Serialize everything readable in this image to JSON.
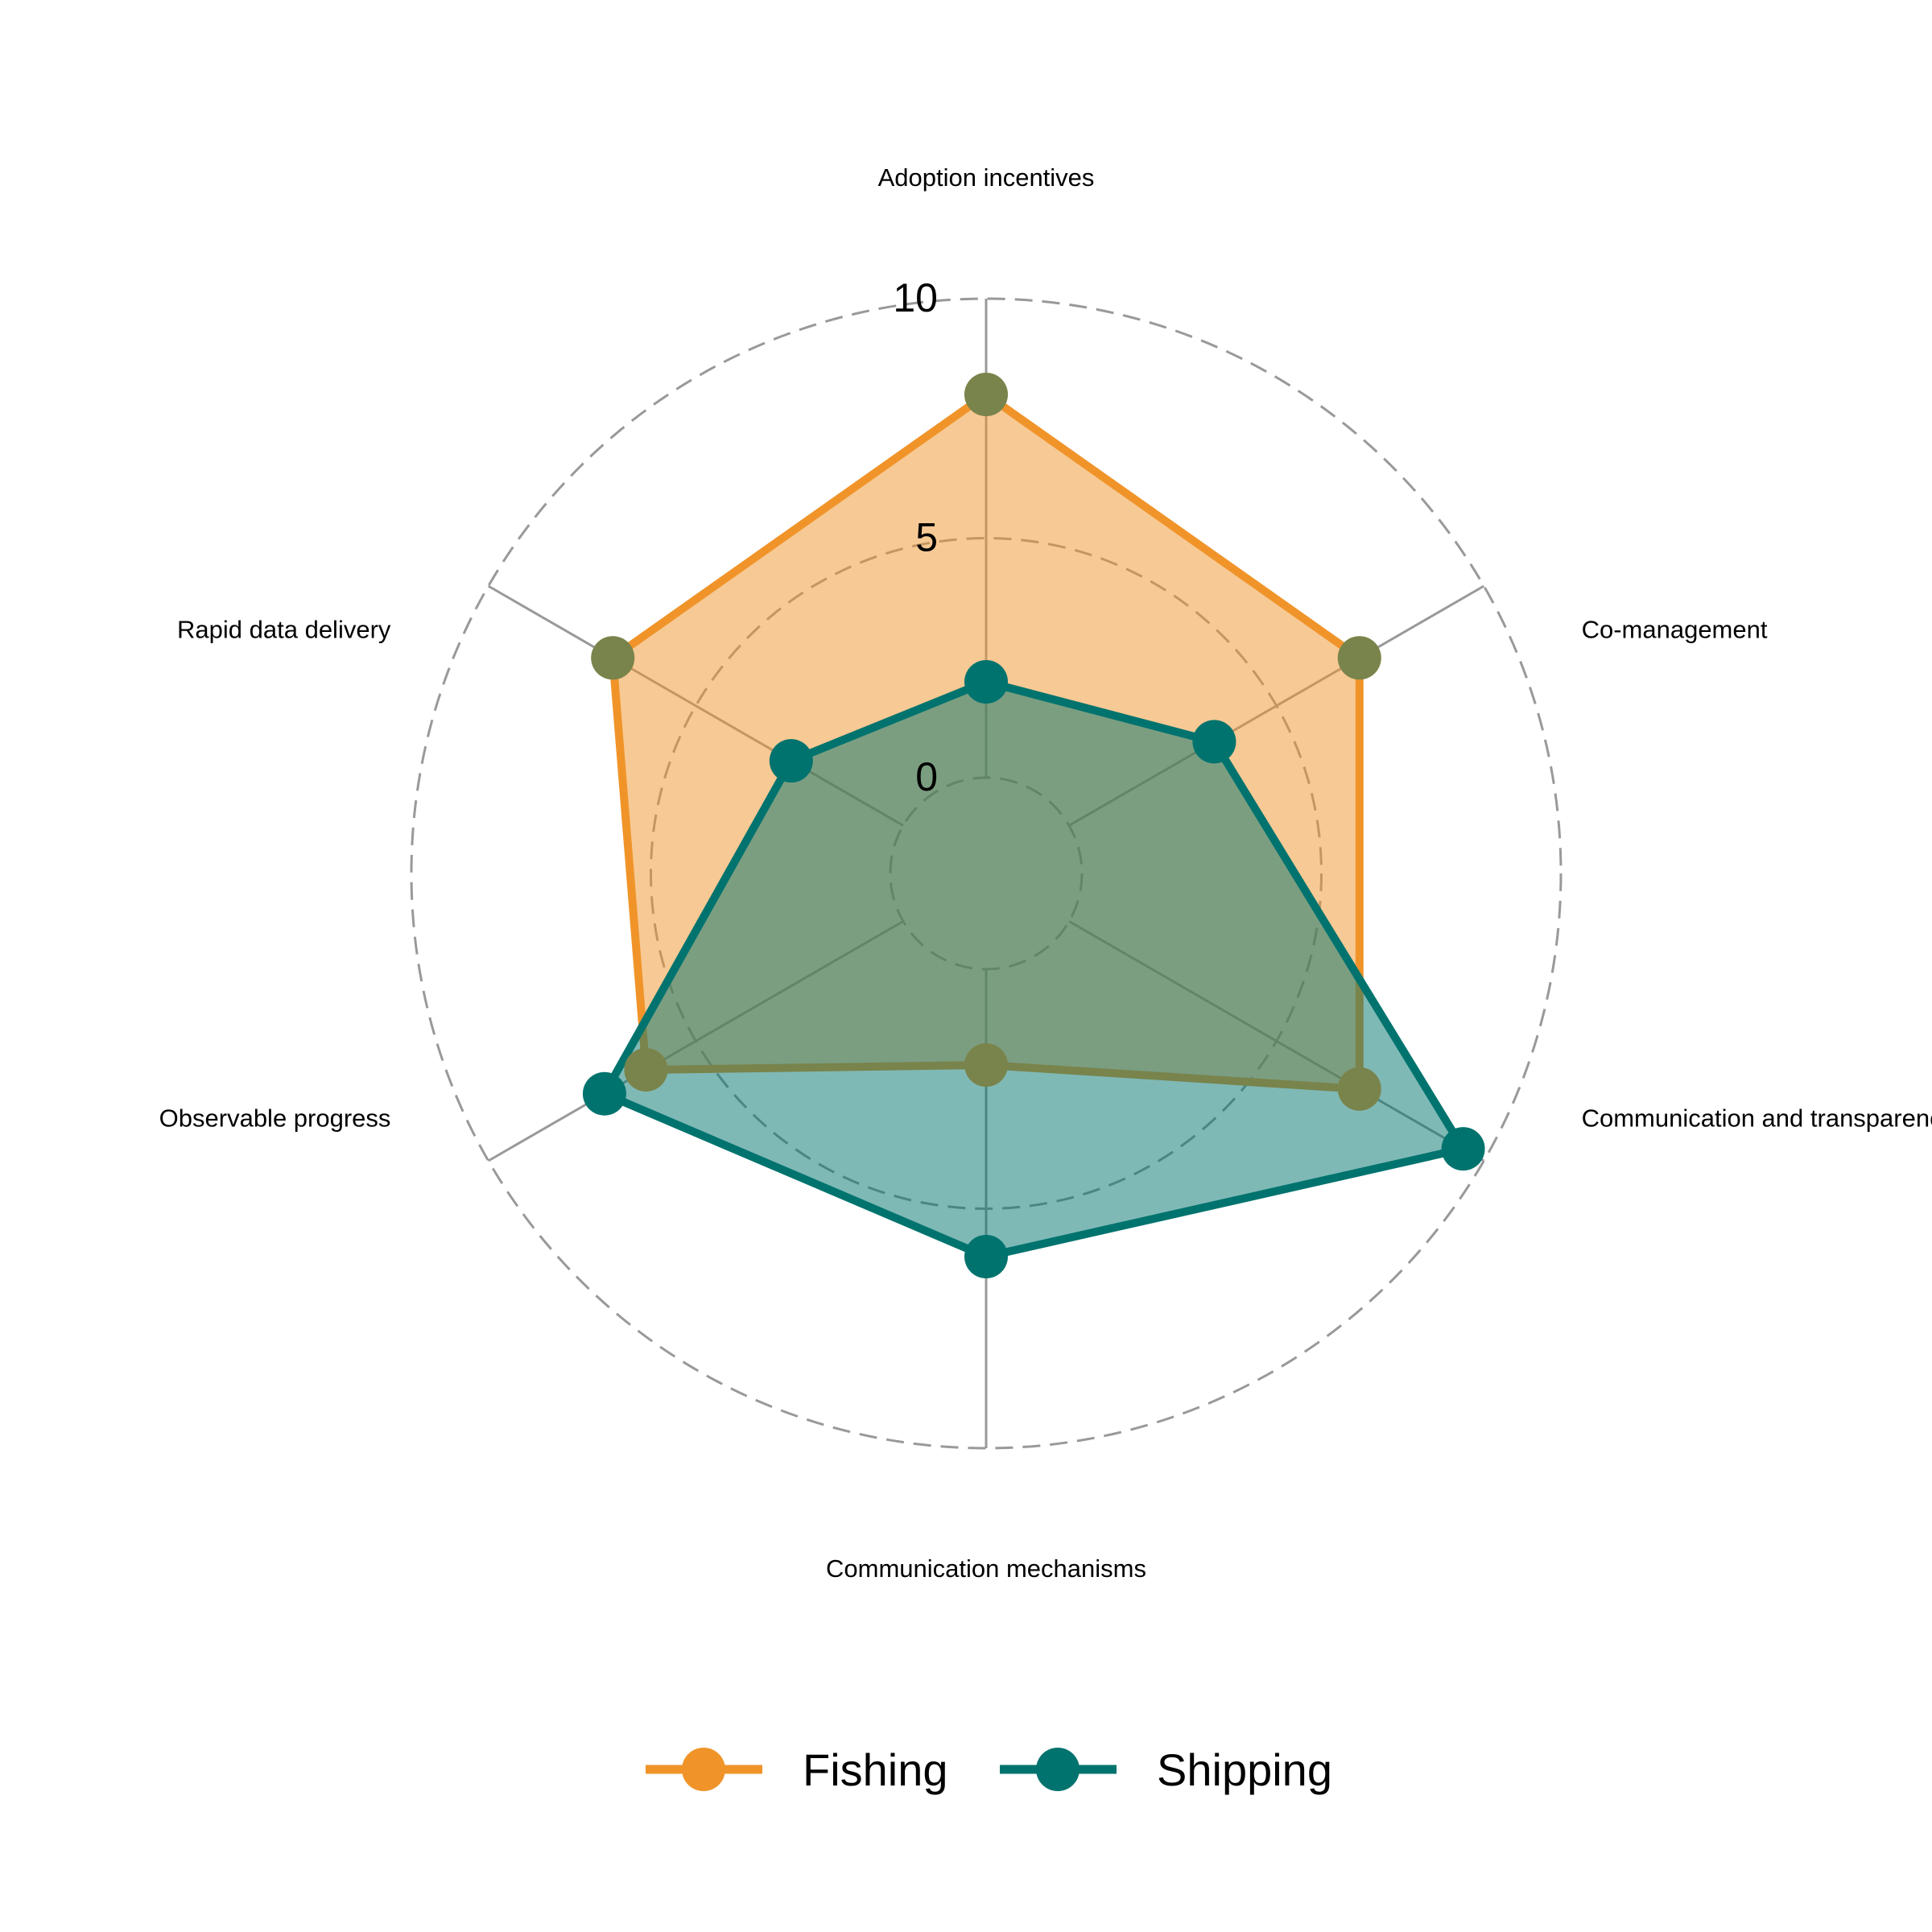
{
  "chart_data": {
    "type": "radar",
    "axes": [
      "Adoption incentives",
      "Co-management",
      "Communication and transparency",
      "Communication mechanisms",
      "Observable progress",
      "Rapid data delivery"
    ],
    "series": [
      {
        "name": "Fishing",
        "color": "#F0942A",
        "values": [
          8,
          7,
          7,
          2,
          6.2,
          7
        ]
      },
      {
        "name": "Shipping",
        "color": "#00736E",
        "values": [
          2,
          3.5,
          9.5,
          6,
          7.2,
          2.7
        ]
      }
    ],
    "rlim": [
      -2,
      10
    ],
    "ticks": [
      0,
      5,
      10
    ],
    "grid": "dashed circles",
    "legend": "bottom"
  }
}
